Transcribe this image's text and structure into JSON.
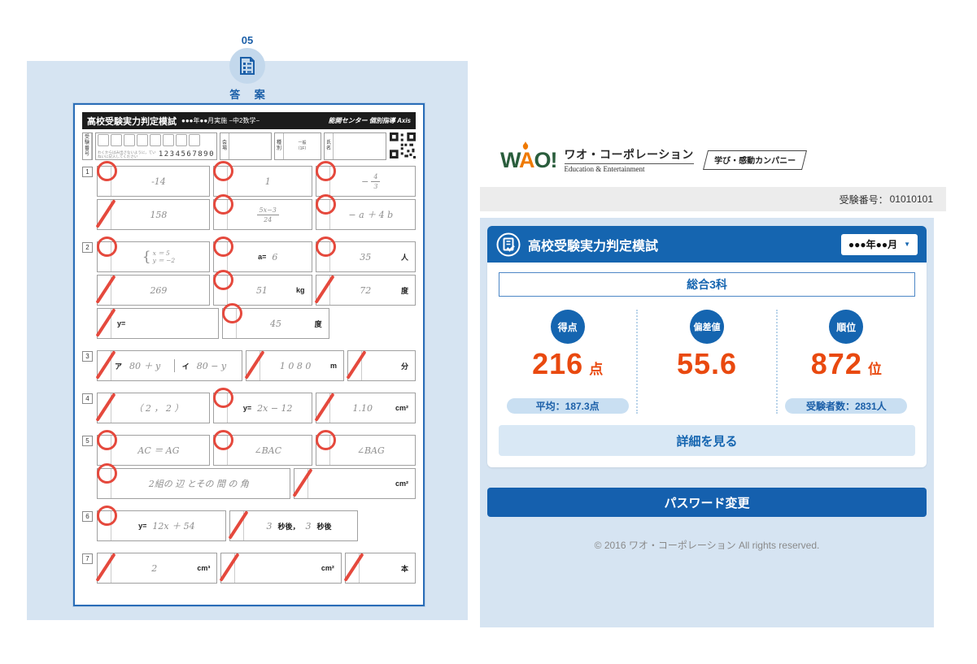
{
  "left_panel": {
    "step_number": "05",
    "step_label": "答 案",
    "sheet": {
      "title": "高校受験実力判定模試",
      "title_sub": "●●●年●●月実施 −中2数学−",
      "brand": "能開センター 個別指導 Axis",
      "id_row": {
        "exam_no_label": "受験番号",
        "note": "わくからはみ出さないように，ていねいに記入してください",
        "digits": "1234567890",
        "venue_label": "会場",
        "type_label": "種別",
        "type_line1": "一般",
        "type_line2": "（1F）",
        "name_label": "氏名"
      },
      "questions": [
        {
          "no": "1",
          "rows": [
            [
              {
                "mark": "c",
                "flex": 1.19,
                "parts": [
                  {
                    "k": "hw",
                    "t": "-14"
                  }
                ]
              },
              {
                "mark": "c",
                "flex": 1,
                "parts": [
                  {
                    "k": "hw",
                    "t": "1"
                  }
                ]
              },
              {
                "mark": "c",
                "flex": 1.02,
                "parts": [
                  {
                    "k": "frac",
                    "pre": "−",
                    "num": "4",
                    "den": "3"
                  }
                ]
              }
            ],
            [
              {
                "mark": "s",
                "flex": 1.19,
                "parts": [
                  {
                    "k": "hw",
                    "t": "158"
                  }
                ]
              },
              {
                "mark": "c",
                "flex": 1,
                "parts": [
                  {
                    "k": "frac",
                    "pre": "",
                    "num": "5x−3",
                    "den": "24"
                  }
                ]
              },
              {
                "mark": "c",
                "flex": 1.02,
                "parts": [
                  {
                    "k": "hw",
                    "t": "− a ＋ 4 b"
                  }
                ]
              }
            ]
          ]
        },
        {
          "no": "2",
          "rows": [
            [
              {
                "mark": "c",
                "flex": 1.19,
                "parts": [
                  {
                    "k": "brace",
                    "lines": [
                      "x ＝ 5",
                      "y ＝ −2"
                    ]
                  }
                ]
              },
              {
                "mark": "c",
                "flex": 1,
                "parts": [
                  {
                    "k": "print",
                    "t": "a="
                  },
                  {
                    "k": "hw",
                    "t": "6"
                  }
                ]
              },
              {
                "mark": "c",
                "flex": 1.02,
                "unit": "人",
                "parts": [
                  {
                    "k": "hw",
                    "t": "35"
                  }
                ]
              }
            ],
            [
              {
                "mark": "s",
                "flex": 1.19,
                "parts": [
                  {
                    "k": "hw",
                    "t": "269"
                  }
                ]
              },
              {
                "mark": "c",
                "flex": 1,
                "unit": "kg",
                "parts": [
                  {
                    "k": "hw",
                    "t": "51"
                  }
                ]
              },
              {
                "mark": "s",
                "flex": 1.02,
                "unit": "度",
                "parts": [
                  {
                    "k": "hw",
                    "t": "72"
                  }
                ]
              }
            ],
            [
              {
                "mark": "s",
                "flex": 1.19,
                "align": "left",
                "parts": [
                  {
                    "k": "print",
                    "t": "y="
                  }
                ]
              },
              {
                "mark": "c",
                "flex": 1,
                "unit": "度",
                "parts": [
                  {
                    "k": "hw",
                    "t": "45"
                  }
                ]
              },
              {
                "spacer": true,
                "flex": 1.02
              }
            ]
          ]
        },
        {
          "no": "3",
          "rows": [
            [
              {
                "mark": "s",
                "flex": 2.07,
                "parts": [
                  {
                    "k": "sub",
                    "label": "ア",
                    "t": "80 ＋ y"
                  },
                  {
                    "k": "sub",
                    "label": "イ",
                    "t": "80 − y"
                  }
                ]
              },
              {
                "mark": "s",
                "flex": 1.25,
                "unit": "m",
                "parts": [
                  {
                    "k": "hw",
                    "t": "1 0 8 0"
                  }
                ]
              },
              {
                "mark": "s",
                "flex": 0.74,
                "unit": "分",
                "parts": []
              }
            ]
          ]
        },
        {
          "no": "4",
          "rows": [
            [
              {
                "mark": "s",
                "flex": 1.19,
                "parts": [
                  {
                    "k": "hw",
                    "t": "（ 2 ， 2 ）"
                  }
                ]
              },
              {
                "mark": "c",
                "flex": 1,
                "parts": [
                  {
                    "k": "print",
                    "t": "y="
                  },
                  {
                    "k": "hw",
                    "t": "2x − 12"
                  }
                ]
              },
              {
                "mark": "s",
                "flex": 1.02,
                "unit": "cm²",
                "parts": [
                  {
                    "k": "hw",
                    "t": "1.10"
                  }
                ]
              }
            ]
          ]
        },
        {
          "no": "5",
          "rows": [
            [
              {
                "mark": "c",
                "flex": 1.19,
                "parts": [
                  {
                    "k": "hw",
                    "t": "AC ＝ AG"
                  }
                ]
              },
              {
                "mark": "c",
                "flex": 1,
                "parts": [
                  {
                    "k": "hw",
                    "t": "∠BAC"
                  }
                ]
              },
              {
                "mark": "c",
                "flex": 1.02,
                "parts": [
                  {
                    "k": "hw",
                    "t": "∠BAG"
                  }
                ]
              }
            ],
            [
              {
                "mark": "c",
                "flex": 2.08,
                "parts": [
                  {
                    "k": "hw",
                    "t": "2組の 辺 とその 間 の 角"
                  }
                ]
              },
              {
                "mark": "s",
                "flex": 1.2,
                "unit": "cm²",
                "parts": []
              }
            ]
          ]
        },
        {
          "no": "6",
          "rows": [
            [
              {
                "mark": "c",
                "flex": 1.15,
                "parts": [
                  {
                    "k": "print",
                    "t": "y="
                  },
                  {
                    "k": "hw",
                    "t": "12x ＋ 54"
                  }
                ]
              },
              {
                "mark": "s",
                "flex": 1.15,
                "parts": [
                  {
                    "k": "hw",
                    "t": "3"
                  },
                  {
                    "k": "print",
                    "t": "秒後，"
                  },
                  {
                    "k": "hw",
                    "t": "3"
                  },
                  {
                    "k": "print",
                    "t": "秒後"
                  }
                ]
              },
              {
                "spacer": true,
                "flex": 0.6
              }
            ]
          ]
        },
        {
          "no": "7",
          "rows": [
            [
              {
                "mark": "s",
                "flex": 1.15,
                "unit": "cm³",
                "parts": [
                  {
                    "k": "hw",
                    "t": "2"
                  }
                ]
              },
              {
                "mark": "s",
                "flex": 1.15,
                "unit": "cm²",
                "parts": []
              },
              {
                "mark": "s",
                "flex": 0.55,
                "unit": "本",
                "parts": []
              }
            ]
          ]
        }
      ]
    }
  },
  "right_panel": {
    "logo": {
      "wordmark_w": "W",
      "wordmark_a": "A",
      "wordmark_o": "O!",
      "company": "ワオ・コーポレーション",
      "tagline_en": "Education & Entertainment",
      "tag": "学び・感動カンパニー"
    },
    "exam_no_bar": {
      "label": "受験番号：",
      "value": "01010101"
    },
    "result_card": {
      "title": "高校受験実力判定模試",
      "period_select": "●●●年●●月",
      "caret_icon": "▼",
      "subject": "総合3科",
      "scores": [
        {
          "badge": "得点",
          "value": "216",
          "unit": "点",
          "sub": "平均：187.3点"
        },
        {
          "badge": "偏差値",
          "value": "55.6",
          "unit": "",
          "sub": ""
        },
        {
          "badge": "順位",
          "value": "872",
          "unit": "位",
          "sub": "受験者数：2831人"
        }
      ],
      "details_button": "詳細を見る"
    },
    "password_button": "パスワード変更",
    "footer": "© 2016 ワオ・コーポレーション All rights reserved."
  }
}
